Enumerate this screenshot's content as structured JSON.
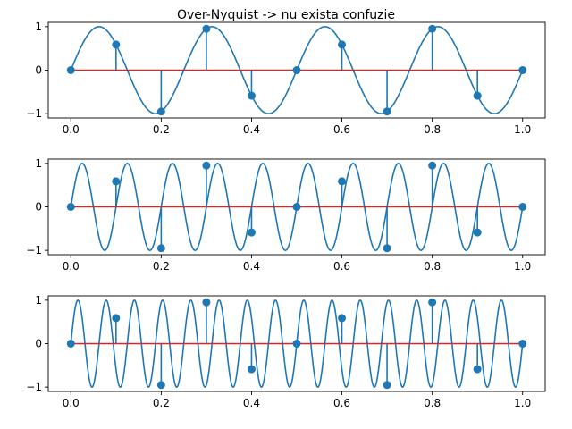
{
  "title": "Over-Nyquist -> nu exista confuzie",
  "colors": {
    "curve": "#1f77b4",
    "stem": "#1f77b4",
    "marker": "#1f77b4",
    "baseline": "#d62728"
  },
  "chart_data": [
    {
      "type": "line",
      "title": "Over-Nyquist -> nu exista confuzie",
      "xlabel": "",
      "ylabel": "",
      "xlim": [
        -0.05,
        1.05
      ],
      "ylim": [
        -1.1,
        1.1
      ],
      "xticks": [
        "0.0",
        "0.2",
        "0.4",
        "0.6",
        "0.8",
        "1.0"
      ],
      "yticks": [
        "1",
        "0",
        "-1"
      ],
      "grid": false,
      "signal": {
        "function": "sin",
        "frequency_hz": 4
      },
      "samples": {
        "x": [
          0.0,
          0.1,
          0.2,
          0.3,
          0.4,
          0.5,
          0.6,
          0.7,
          0.8,
          0.9,
          1.0
        ],
        "y": [
          0.0,
          0.588,
          -0.951,
          0.951,
          -0.588,
          0.0,
          0.588,
          -0.951,
          0.951,
          -0.588,
          0.0
        ]
      }
    },
    {
      "type": "line",
      "title": "",
      "xlabel": "",
      "ylabel": "",
      "xlim": [
        -0.05,
        1.05
      ],
      "ylim": [
        -1.1,
        1.1
      ],
      "xticks": [
        "0.0",
        "0.2",
        "0.4",
        "0.6",
        "0.8",
        "1.0"
      ],
      "yticks": [
        "1",
        "0",
        "-1"
      ],
      "grid": false,
      "signal": {
        "function": "sin",
        "frequency_hz": 10
      },
      "samples": {
        "x": [
          0.0,
          0.1,
          0.2,
          0.3,
          0.4,
          0.5,
          0.6,
          0.7,
          0.8,
          0.9,
          1.0
        ],
        "y": [
          0.0,
          0.588,
          -0.951,
          0.951,
          -0.588,
          0.0,
          0.588,
          -0.951,
          0.951,
          -0.588,
          0.0
        ]
      }
    },
    {
      "type": "line",
      "title": "",
      "xlabel": "",
      "ylabel": "",
      "xlim": [
        -0.05,
        1.05
      ],
      "ylim": [
        -1.1,
        1.1
      ],
      "xticks": [
        "0.0",
        "0.2",
        "0.4",
        "0.6",
        "0.8",
        "1.0"
      ],
      "yticks": [
        "1",
        "0",
        "-1"
      ],
      "grid": false,
      "signal": {
        "function": "sin",
        "frequency_hz": 16
      },
      "samples": {
        "x": [
          0.0,
          0.1,
          0.2,
          0.3,
          0.4,
          0.5,
          0.6,
          0.7,
          0.8,
          0.9,
          1.0
        ],
        "y": [
          0.0,
          0.588,
          -0.951,
          0.951,
          -0.588,
          0.0,
          0.588,
          -0.951,
          0.951,
          -0.588,
          0.0
        ]
      }
    }
  ]
}
